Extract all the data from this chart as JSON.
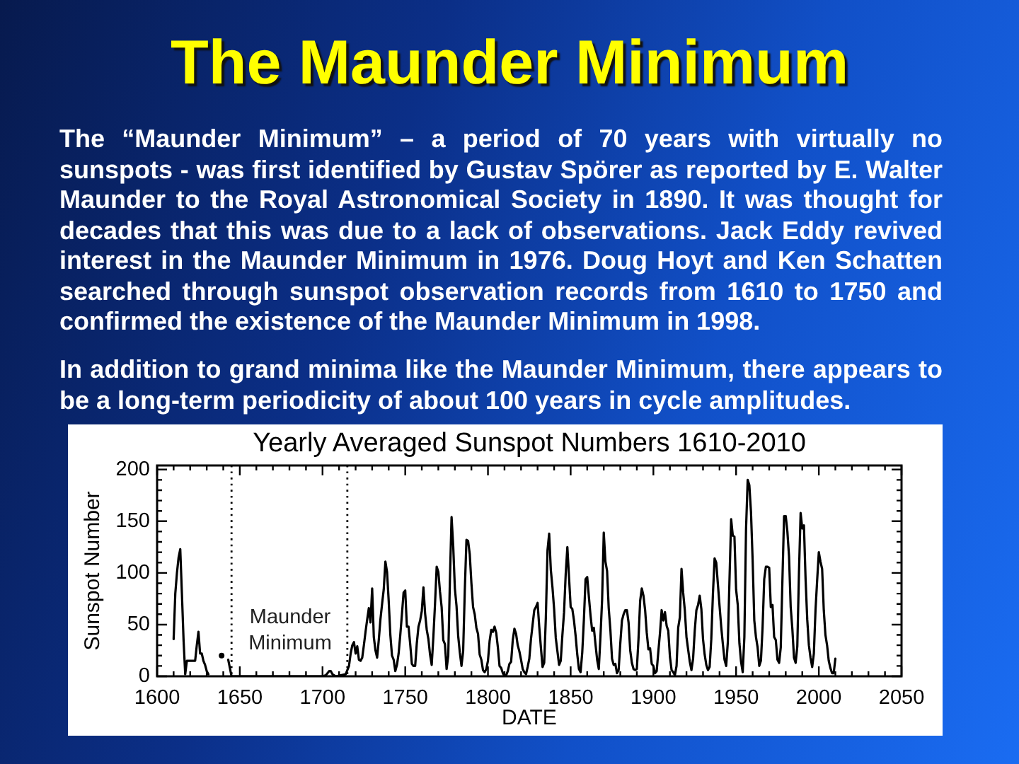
{
  "chart_data": {
    "type": "line",
    "title": "The Maunder Minimum",
    "subtitle": "Yearly Averaged Sunspot Numbers 1610-2010",
    "xlabel": "DATE",
    "ylabel": "Sunspot Number",
    "annotations": [
      "The “Maunder Minimum” – a period of 70 years with virtually no sunspots - was first identified by Gustav Spörer as reported by E. Walter Maunder to the Royal Astronomical Society in 1890. It was thought for decades that this was due to a lack of observations. Jack Eddy revived interest in the Maunder Minimum in 1976. Doug Hoyt and Ken Schatten searched through sunspot observation records from 1610 to 1750 and confirmed the existence of the Maunder Minimum in 1998.",
      "In addition to grand minima like the Maunder Minimum, there appears to be a long-term periodicity of about 100 years in cycle amplitudes."
    ],
    "xlim": [
      1600,
      2050
    ],
    "ylim": [
      0,
      204
    ],
    "xticks": [
      1600,
      {
        "value": 1610,
        "label": null
      },
      {
        "value": 1620,
        "label": null
      },
      {
        "value": 1630,
        "label": null
      },
      {
        "value": 1640,
        "label": null
      },
      1650,
      {
        "value": 1660,
        "label": null
      },
      {
        "value": 1670,
        "label": null
      },
      {
        "value": 1680,
        "label": null
      },
      {
        "value": 1690,
        "label": null
      },
      1700,
      {
        "value": 1710,
        "label": null
      },
      {
        "value": 1720,
        "label": null
      },
      {
        "value": 1730,
        "label": null
      },
      {
        "value": 1740,
        "label": null
      },
      1750,
      {
        "value": 1760,
        "label": null
      },
      {
        "value": 1770,
        "label": null
      },
      {
        "value": 1780,
        "label": null
      },
      {
        "value": 1790,
        "label": null
      },
      1800,
      {
        "value": 1810,
        "label": null
      },
      {
        "value": 1820,
        "label": null
      },
      {
        "value": 1830,
        "label": null
      },
      {
        "value": 1840,
        "label": null
      },
      1850,
      {
        "value": 1860,
        "label": null
      },
      {
        "value": 1870,
        "label": null
      },
      {
        "value": 1880,
        "label": null
      },
      {
        "value": 1890,
        "label": null
      },
      1900,
      {
        "value": 1910,
        "label": null
      },
      {
        "value": 1920,
        "label": null
      },
      {
        "value": 1930,
        "label": null
      },
      {
        "value": 1940,
        "label": null
      },
      1950,
      {
        "value": 1960,
        "label": null
      },
      {
        "value": 1970,
        "label": null
      },
      {
        "value": 1980,
        "label": null
      },
      {
        "value": 1990,
        "label": null
      },
      2000,
      {
        "value": 2010,
        "label": null
      },
      {
        "value": 2020,
        "label": null
      },
      {
        "value": 2030,
        "label": null
      },
      {
        "value": 2040,
        "label": null
      },
      2050
    ],
    "yticks": [
      0,
      {
        "value": 10,
        "label": null
      },
      {
        "value": 20,
        "label": null
      },
      {
        "value": 30,
        "label": null
      },
      {
        "value": 40,
        "label": null
      },
      50,
      {
        "value": 60,
        "label": null
      },
      {
        "value": 70,
        "label": null
      },
      {
        "value": 80,
        "label": null
      },
      {
        "value": 90,
        "label": null
      },
      100,
      {
        "value": 110,
        "label": null
      },
      {
        "value": 120,
        "label": null
      },
      {
        "value": 130,
        "label": null
      },
      {
        "value": 140,
        "label": null
      },
      150,
      {
        "value": 160,
        "label": null
      },
      {
        "value": 170,
        "label": null
      },
      {
        "value": 180,
        "label": null
      },
      {
        "value": 190,
        "label": null
      },
      200
    ],
    "ref_lines": [
      {
        "axis": "x",
        "value": 1645,
        "color": "#000000",
        "line_style": "dotted",
        "label": "Maunder Minimum"
      },
      {
        "axis": "x",
        "value": 1715,
        "color": "#000000",
        "line_style": "dotted"
      }
    ],
    "series": [
      {
        "color": "#000000",
        "marker": "none",
        "x": [
          1610,
          1611,
          1612,
          1613,
          1614,
          1615,
          1616,
          1617,
          1618,
          1619,
          1620,
          1621,
          1622,
          1623,
          1624,
          1625,
          1626,
          1627,
          1628,
          1629,
          1630,
          1631,
          1632,
          1643,
          1644,
          1645,
          1650,
          1660,
          1670,
          1680,
          1690,
          1700,
          1702,
          1704,
          1705,
          1706,
          1708,
          1714,
          1716,
          1717,
          1718,
          1719,
          1720,
          1721,
          1722,
          1723,
          1724,
          1725,
          1726,
          1727,
          1728,
          1729,
          1730,
          1731,
          1732,
          1733,
          1734,
          1735,
          1736,
          1737,
          1738,
          1739,
          1740,
          1741,
          1742,
          1743,
          1744,
          1745,
          1746,
          1747,
          1748,
          1749,
          1750,
          1751,
          1752,
          1753,
          1754,
          1755,
          1756,
          1757,
          1758,
          1759,
          1760,
          1761,
          1762,
          1763,
          1764,
          1765,
          1766,
          1767,
          1768,
          1769,
          1770,
          1771,
          1772,
          1773,
          1774,
          1775,
          1776,
          1777,
          1778,
          1779,
          1780,
          1781,
          1782,
          1783,
          1784,
          1785,
          1786,
          1787,
          1788,
          1789,
          1790,
          1791,
          1792,
          1793,
          1794,
          1795,
          1796,
          1797,
          1798,
          1799,
          1800,
          1801,
          1802,
          1803,
          1804,
          1805,
          1806,
          1807,
          1808,
          1809,
          1810,
          1811,
          1812,
          1813,
          1814,
          1815,
          1816,
          1817,
          1818,
          1819,
          1820,
          1821,
          1822,
          1823,
          1824,
          1825,
          1826,
          1827,
          1828,
          1829,
          1830,
          1831,
          1832,
          1833,
          1834,
          1835,
          1836,
          1837,
          1838,
          1839,
          1840,
          1841,
          1842,
          1843,
          1844,
          1845,
          1846,
          1847,
          1848,
          1849,
          1850,
          1851,
          1852,
          1853,
          1854,
          1855,
          1856,
          1857,
          1858,
          1859,
          1860,
          1861,
          1862,
          1863,
          1864,
          1865,
          1866,
          1867,
          1868,
          1869,
          1870,
          1871,
          1872,
          1873,
          1874,
          1875,
          1876,
          1877,
          1878,
          1879,
          1880,
          1881,
          1882,
          1883,
          1884,
          1885,
          1886,
          1887,
          1888,
          1889,
          1890,
          1891,
          1892,
          1893,
          1894,
          1895,
          1896,
          1897,
          1898,
          1899,
          1900,
          1901,
          1902,
          1903,
          1904,
          1905,
          1906,
          1907,
          1908,
          1909,
          1910,
          1911,
          1912,
          1913,
          1914,
          1915,
          1916,
          1917,
          1918,
          1919,
          1920,
          1921,
          1922,
          1923,
          1924,
          1925,
          1926,
          1927,
          1928,
          1929,
          1930,
          1931,
          1932,
          1933,
          1934,
          1935,
          1936,
          1937,
          1938,
          1939,
          1940,
          1941,
          1942,
          1943,
          1944,
          1945,
          1946,
          1947,
          1948,
          1949,
          1950,
          1951,
          1952,
          1953,
          1954,
          1955,
          1956,
          1957,
          1958,
          1959,
          1960,
          1961,
          1962,
          1963,
          1964,
          1965,
          1966,
          1967,
          1968,
          1969,
          1970,
          1971,
          1972,
          1973,
          1974,
          1975,
          1976,
          1977,
          1978,
          1979,
          1980,
          1981,
          1982,
          1983,
          1984,
          1985,
          1986,
          1987,
          1988,
          1989,
          1990,
          1991,
          1992,
          1993,
          1994,
          1995,
          1996,
          1997,
          1998,
          1999,
          2000,
          2001,
          2002,
          2003,
          2004,
          2005,
          2006,
          2007,
          2008,
          2009,
          2010
        ],
        "values": [
          36,
          80,
          100,
          115,
          123,
          80,
          35,
          2,
          15,
          15,
          15,
          15,
          15,
          15,
          30,
          43,
          22,
          22,
          15,
          11,
          5,
          2,
          null,
          16,
          8,
          0,
          0,
          0,
          0,
          0,
          0,
          0,
          1,
          5,
          5,
          2,
          0,
          2,
          10,
          22,
          30,
          33,
          22,
          29,
          16,
          15,
          18,
          30,
          43,
          55,
          66,
          52,
          85,
          38,
          25,
          18,
          35,
          55,
          70,
          84,
          111,
          101,
          73,
          40,
          20,
          16,
          5,
          11,
          22,
          40,
          60,
          81,
          83,
          48,
          48,
          31,
          12,
          10,
          10,
          32,
          48,
          54,
          63,
          86,
          61,
          45,
          36,
          21,
          11,
          38,
          70,
          106,
          101,
          82,
          67,
          35,
          31,
          7,
          20,
          93,
          154,
          126,
          85,
          68,
          39,
          23,
          10,
          24,
          83,
          132,
          131,
          118,
          90,
          67,
          60,
          47,
          41,
          21,
          16,
          6,
          4,
          7,
          15,
          34,
          45,
          43,
          48,
          42,
          28,
          10,
          8,
          3,
          0,
          1,
          5,
          12,
          14,
          35,
          46,
          41,
          30,
          24,
          16,
          7,
          4,
          2,
          9,
          17,
          36,
          50,
          64,
          67,
          71,
          48,
          28,
          9,
          13,
          57,
          122,
          138,
          103,
          86,
          65,
          37,
          24,
          11,
          15,
          40,
          62,
          99,
          125,
          96,
          67,
          65,
          54,
          39,
          21,
          7,
          4,
          23,
          55,
          94,
          96,
          77,
          59,
          44,
          47,
          31,
          16,
          7,
          38,
          74,
          139,
          111,
          102,
          66,
          45,
          17,
          11,
          12,
          3,
          6,
          32,
          54,
          60,
          64,
          64,
          52,
          25,
          13,
          7,
          6,
          7,
          36,
          73,
          85,
          78,
          64,
          42,
          26,
          27,
          12,
          10,
          3,
          5,
          24,
          42,
          64,
          54,
          62,
          49,
          44,
          19,
          6,
          4,
          1,
          10,
          47,
          57,
          104,
          81,
          64,
          38,
          26,
          14,
          6,
          17,
          44,
          64,
          69,
          78,
          65,
          36,
          21,
          11,
          6,
          9,
          36,
          80,
          114,
          110,
          89,
          68,
          48,
          31,
          16,
          10,
          33,
          93,
          152,
          136,
          135,
          84,
          69,
          32,
          14,
          4,
          38,
          142,
          190,
          185,
          159,
          112,
          54,
          38,
          28,
          10,
          15,
          47,
          94,
          106,
          106,
          105,
          67,
          69,
          38,
          35,
          16,
          13,
          28,
          93,
          155,
          155,
          140,
          116,
          67,
          46,
          18,
          13,
          29,
          100,
          158,
          143,
          146,
          94,
          55,
          30,
          18,
          9,
          22,
          64,
          93,
          120,
          111,
          104,
          64,
          40,
          30,
          15,
          8,
          3,
          3,
          17
        ]
      },
      {
        "type": "scatter",
        "color": "#000000",
        "marker": "circle",
        "x": [
          1639
        ],
        "values": [
          20
        ]
      }
    ]
  }
}
